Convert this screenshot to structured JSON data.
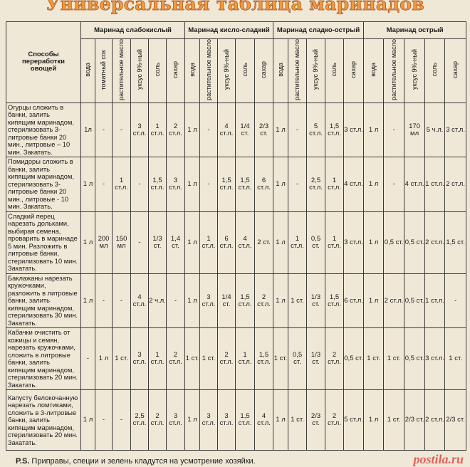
{
  "title": "Универсальная таблица маринадов",
  "header": {
    "method_col": "Способы переработки овощей",
    "groups": [
      {
        "label": "Маринад слабокислый",
        "columns": [
          "вода",
          "томатный сок",
          "растительное масло",
          "уксус 9%-ный",
          "соль",
          "сахар"
        ]
      },
      {
        "label": "Маринад кисло-сладкий",
        "columns": [
          "вода",
          "растительное масло",
          "уксус 9%-ный",
          "соль",
          "сахар"
        ]
      },
      {
        "label": "Маринад сладко-острый",
        "columns": [
          "вода",
          "растительное масло",
          "уксус 9%-ный",
          "соль",
          "сахар"
        ]
      },
      {
        "label": "Маринад острый",
        "columns": [
          "вода",
          "растительное масло",
          "уксус 9%-ный",
          "соль",
          "сахар"
        ]
      }
    ]
  },
  "rows": [
    {
      "method": "Огурцы сложить в банки, залить кипящим маринадом, стерилизовать 3-литровые банки 20 мин., литровые – 10 мин. Закатать.",
      "values": [
        "1л",
        "-",
        "-",
        "3 ст.л.",
        "1 ст.л.",
        "2 ст.л.",
        "1 л",
        "-",
        "4 ст.л.",
        "1/4 ст.",
        "2/3 ст.",
        "1 л",
        "-",
        "5 ст.л.",
        "1,5 ст.л.",
        "3 ст.л.",
        "1 л",
        "-",
        "170 мл",
        "5 ч.л.",
        "3 ст.л."
      ]
    },
    {
      "method": "Помидоры сложить в банки, залить кипящим маринадом, стерилизовать 3-литровые банки 20 мин., литровые - 10 мин. Закатать.",
      "values": [
        "1 л",
        "-",
        "1 ст.л.",
        "-",
        "1,5 ст.л.",
        "3 ст.л.",
        "1 л",
        "-",
        "1,5 ст.л.",
        "1,5 ст.л.",
        "6 ст.л.",
        "1 л",
        "-",
        "2,5 ст.л.",
        "1 ст.л.",
        "4 ст.л.",
        "1 л",
        "-",
        "4 ст.л.",
        "1 ст.л.",
        "2 ст.л."
      ]
    },
    {
      "method": "Сладкий перец нарезать дольками, выбирая семена, проварить в маринаде 5 мин. Разложить в литровые банки, стерилизовать 10 мин. Закатать.",
      "values": [
        "1 л",
        "200 мл",
        "150 мл",
        "-",
        "1/3 ст.",
        "1,4 ст.",
        "1 л",
        "1 ст.л.",
        "6 ст.л.",
        "4 ст.л.",
        "2 ст.",
        "1 л",
        "1 ст.л.",
        "0,5 ст.",
        "1 ст.л.",
        "3 ст.л.",
        "1 л",
        "0,5 ст.",
        "0,5 ст.",
        "2 ст.л.",
        "1,5 ст."
      ]
    },
    {
      "method": "Баклажаны нарезать кружочками, разложить в литровые банки, залить кипящим маринадом, стерилизовать 30 мин. Закатать.",
      "values": [
        "1 л",
        "-",
        "-",
        "4 ст.л.",
        "2 ч.л.",
        "-",
        "1 л",
        "3 ст.л.",
        "1/4 ст.",
        "1,5 ст.л.",
        "2 ст.л.",
        "1 л",
        "1 ст.",
        "1/3 ст.",
        "1,5 ст.л.",
        "6 ст.л.",
        "1 л",
        "2 ст.л.",
        "0,5 ст.",
        "1 ст.л.",
        "-"
      ]
    },
    {
      "method": "Кабачки очистить от кожицы и семян, нарезать кружочками, сложить в литровые банки, залить кипящим маринадом, стерилизовать 20 мин. Закатать.",
      "values": [
        "-",
        "1 л",
        "1 ст.",
        "3 ст.л.",
        "1 ст.л.",
        "2 ст.л.",
        "1 ст.",
        "1 ст.",
        "2 ст.л.",
        "1 ст.л.",
        "1,5 ст.л.",
        "1 ст.",
        "0,5 ст.",
        "1/3 ст.",
        "2 ст.л.",
        "0,5 ст.",
        "1 ст.",
        "1 ст.",
        "0,5 ст.",
        "3 ст.л.",
        "1 ст."
      ]
    },
    {
      "method": "Капусту белокочанную нарезать ломтиками, сложить в 3-литровые банки, залить кипящим маринадом, стерилизовать 20 мин. Закатать.",
      "values": [
        "1 л",
        "-",
        "-",
        "2,5 ст.л.",
        "2 ст.л.",
        "3 ст.л.",
        "1 л",
        "3 ст.л.",
        "3 ст.л.",
        "1,5 ст.л.",
        "4 ст.л.",
        "1 л",
        "1 ст.",
        "2/3 ст.",
        "2 ст.л.",
        "5 ст.л.",
        "1 л",
        "1 ст.",
        "2/3 ст.",
        "2 ст.л.",
        "2/3 ст."
      ]
    }
  ],
  "footnote": {
    "prefix": "P.S.",
    "text": " Приправы, специи и зелень кладутся на усмотрение хозяйки."
  },
  "watermark": "postila.ru",
  "colors": {
    "title": "#f39a3c",
    "background": "#efe8d6",
    "watermark": "#e63c3c"
  }
}
